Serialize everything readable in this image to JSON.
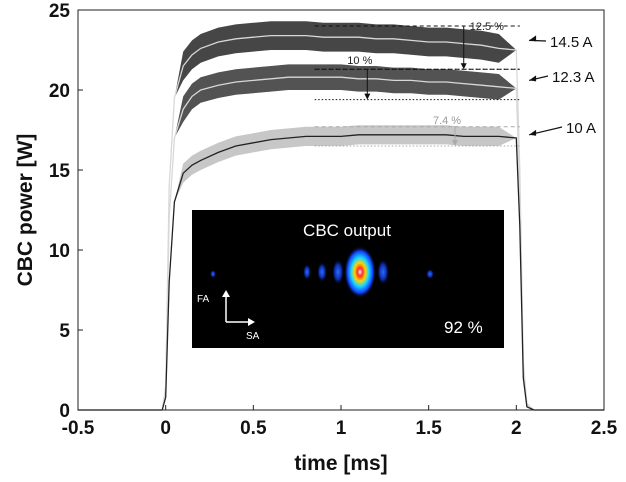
{
  "chart_data": {
    "type": "line",
    "xlabel": "time [ms]",
    "ylabel": "CBC power [W]",
    "xlim": [
      -0.5,
      2.5
    ],
    "ylim": [
      0,
      25
    ],
    "xticks": [
      "-0.5",
      "0",
      "0.5",
      "1",
      "1.5",
      "2",
      "2.5"
    ],
    "yticks": [
      "0",
      "5",
      "10",
      "15",
      "20",
      "25"
    ],
    "grid": false,
    "series": [
      {
        "name": "14.5 A",
        "color": "#3c3c3c",
        "band": 0.9,
        "x": [
          -0.5,
          -0.02,
          0.0,
          0.02,
          0.05,
          0.1,
          0.15,
          0.2,
          0.3,
          0.4,
          0.5,
          0.6,
          0.7,
          0.8,
          0.9,
          1.0,
          1.1,
          1.2,
          1.3,
          1.4,
          1.5,
          1.6,
          1.7,
          1.8,
          1.9,
          2.0,
          2.02,
          2.04,
          2.06,
          2.1,
          2.5
        ],
        "y": [
          0,
          0,
          1.5,
          14,
          19.5,
          21.5,
          22.2,
          22.6,
          23.0,
          23.2,
          23.3,
          23.4,
          23.4,
          23.4,
          23.3,
          23.3,
          23.3,
          23.2,
          23.2,
          23.1,
          23.0,
          23.0,
          22.9,
          22.8,
          22.6,
          22.5,
          15,
          3,
          0.4,
          0,
          0
        ]
      },
      {
        "name": "12.3 A",
        "color": "#4a4a4a",
        "band": 0.8,
        "x": [
          -0.5,
          -0.02,
          0.0,
          0.02,
          0.05,
          0.1,
          0.15,
          0.2,
          0.3,
          0.4,
          0.5,
          0.6,
          0.7,
          0.8,
          0.9,
          1.0,
          1.1,
          1.2,
          1.3,
          1.4,
          1.5,
          1.6,
          1.7,
          1.8,
          1.9,
          2.0,
          2.02,
          2.04,
          2.06,
          2.1,
          2.5
        ],
        "y": [
          0,
          0,
          1.2,
          12,
          17,
          18.8,
          19.6,
          20.0,
          20.3,
          20.5,
          20.6,
          20.7,
          20.8,
          20.8,
          20.8,
          20.8,
          20.7,
          20.7,
          20.6,
          20.6,
          20.5,
          20.5,
          20.4,
          20.3,
          20.2,
          20.1,
          13.5,
          2.5,
          0.3,
          0,
          0
        ]
      },
      {
        "name": "10 A",
        "color": "#c4c4c4",
        "band": 0.6,
        "x": [
          -0.5,
          -0.02,
          0.0,
          0.02,
          0.05,
          0.1,
          0.15,
          0.2,
          0.3,
          0.4,
          0.5,
          0.6,
          0.7,
          0.8,
          0.9,
          1.0,
          1.1,
          1.2,
          1.3,
          1.4,
          1.5,
          1.6,
          1.7,
          1.8,
          1.9,
          2.0,
          2.02,
          2.04,
          2.06,
          2.1,
          2.5
        ],
        "y": [
          0,
          0,
          0.8,
          8,
          13,
          14.8,
          15.3,
          15.6,
          16.1,
          16.5,
          16.7,
          16.9,
          17.0,
          17.1,
          17.1,
          17.1,
          17.2,
          17.2,
          17.2,
          17.2,
          17.2,
          17.2,
          17.1,
          17.1,
          17.1,
          17.0,
          11.5,
          2,
          0.2,
          0,
          0
        ]
      }
    ],
    "annotations": [
      {
        "text": "12.5 %",
        "x": 1.7,
        "y_top": 24.0,
        "y_bottom": 21.3,
        "x_from": 0.85,
        "x_to": 2.02
      },
      {
        "text": "10 %",
        "x": 1.15,
        "y_top": 21.3,
        "y_bottom": 19.4,
        "x_from": 0.85,
        "x_to": 2.02
      },
      {
        "text": "7.4 %",
        "x": 1.65,
        "y_top": 17.7,
        "y_bottom": 16.5,
        "x_from": 0.85,
        "x_to": 2.02,
        "light": true
      }
    ],
    "inset": {
      "title": "CBC output",
      "vertical_axis_label": "FA",
      "horizontal_axis_label": "SA",
      "efficiency_label": "92 %"
    }
  }
}
